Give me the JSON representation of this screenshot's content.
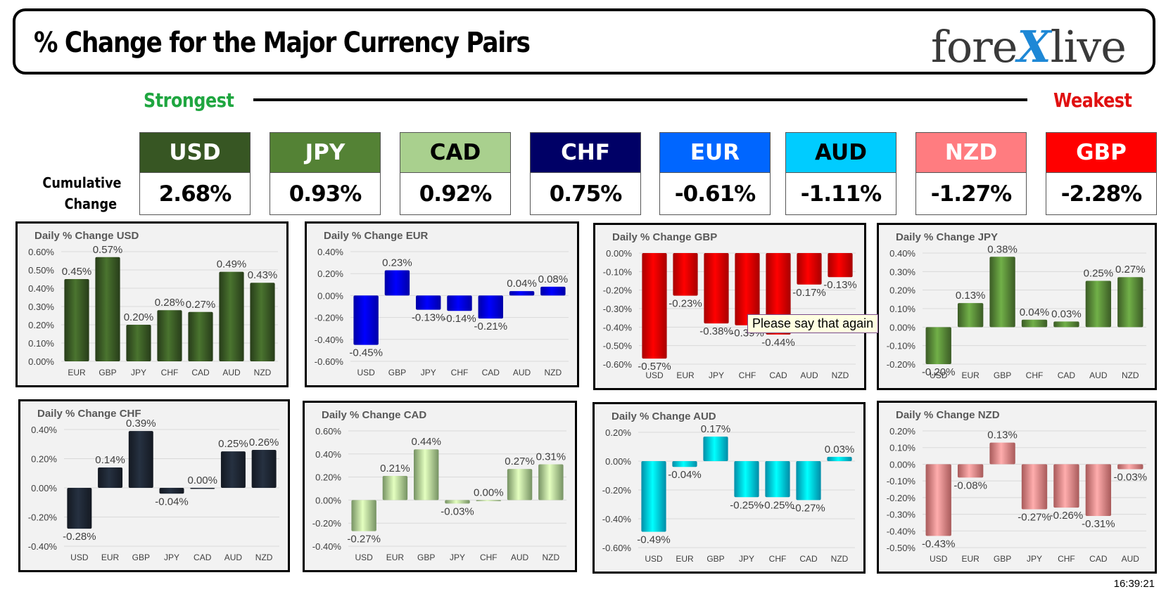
{
  "header": {
    "title": "% Change for the Major Currency Pairs",
    "logo_left": "fore",
    "logo_x": "X",
    "logo_right": "live"
  },
  "strength": {
    "strongest": "Strongest",
    "weakest": "Weakest"
  },
  "cumulative_label": [
    "Cumulative",
    "Change"
  ],
  "currencies": [
    {
      "code": "USD",
      "value": "2.68%",
      "bg": "#375623",
      "fg": "#ffffff"
    },
    {
      "code": "JPY",
      "value": "0.93%",
      "bg": "#548235",
      "fg": "#ffffff"
    },
    {
      "code": "CAD",
      "value": "0.92%",
      "bg": "#a9d08e",
      "fg": "#000000"
    },
    {
      "code": "CHF",
      "value": "0.75%",
      "bg": "#000066",
      "fg": "#ffffff"
    },
    {
      "code": "EUR",
      "value": "-0.61%",
      "bg": "#0066ff",
      "fg": "#ffffff"
    },
    {
      "code": "AUD",
      "value": "-1.11%",
      "bg": "#00ccff",
      "fg": "#000000"
    },
    {
      "code": "NZD",
      "value": "-1.27%",
      "bg": "#ff7c80",
      "fg": "#ffffff"
    },
    {
      "code": "GBP",
      "value": "-2.28%",
      "bg": "#ff0000",
      "fg": "#ffffff"
    }
  ],
  "chart_data": [
    {
      "type": "bar",
      "title": "Daily % Change USD",
      "categories": [
        "EUR",
        "GBP",
        "JPY",
        "CHF",
        "CAD",
        "AUD",
        "NZD"
      ],
      "values": [
        0.45,
        0.57,
        0.2,
        0.28,
        0.27,
        0.49,
        0.43
      ],
      "labels": [
        "0.45%",
        "0.57%",
        "0.20%",
        "0.28%",
        "0.27%",
        "0.49%",
        "0.43%"
      ],
      "yticks": [
        "0.00%",
        "0.10%",
        "0.20%",
        "0.30%",
        "0.40%",
        "0.50%",
        "0.60%"
      ],
      "ylim": [
        0,
        0.6
      ],
      "color": "#375623"
    },
    {
      "type": "bar",
      "title": "Daily % Change EUR",
      "categories": [
        "USD",
        "GBP",
        "JPY",
        "CHF",
        "CAD",
        "AUD",
        "NZD"
      ],
      "values": [
        -0.45,
        0.23,
        -0.13,
        -0.14,
        -0.21,
        0.04,
        0.08
      ],
      "labels": [
        "-0.45%",
        "0.23%",
        "-0.13%",
        "-0.14%",
        "-0.21%",
        "0.04%",
        "0.08%"
      ],
      "yticks": [
        "-0.60%",
        "-0.40%",
        "-0.20%",
        "0.00%",
        "0.20%",
        "0.40%"
      ],
      "ylim": [
        -0.6,
        0.4
      ],
      "color": "#0000ee"
    },
    {
      "type": "bar",
      "title": "Daily % Change GBP",
      "categories": [
        "USD",
        "EUR",
        "JPY",
        "CHF",
        "CAD",
        "AUD",
        "NZD"
      ],
      "values": [
        -0.57,
        -0.23,
        -0.38,
        -0.39,
        -0.44,
        -0.17,
        -0.13
      ],
      "labels": [
        "-0.57%",
        "-0.23%",
        "-0.38%",
        "-0.39%",
        "-0.44%",
        "-0.17%",
        "-0.13%"
      ],
      "yticks": [
        "-0.60%",
        "-0.50%",
        "-0.40%",
        "-0.30%",
        "-0.20%",
        "-0.10%",
        "0.00%"
      ],
      "ylim": [
        -0.6,
        0
      ],
      "color": "#ee0000"
    },
    {
      "type": "bar",
      "title": "Daily % Change JPY",
      "categories": [
        "USD",
        "EUR",
        "GBP",
        "CHF",
        "CAD",
        "AUD",
        "NZD"
      ],
      "values": [
        -0.2,
        0.13,
        0.38,
        0.04,
        0.03,
        0.25,
        0.27
      ],
      "labels": [
        "-0.20%",
        "0.13%",
        "0.38%",
        "0.04%",
        "0.03%",
        "0.25%",
        "0.27%"
      ],
      "yticks": [
        "-0.20%",
        "-0.10%",
        "0.00%",
        "0.10%",
        "0.20%",
        "0.30%",
        "0.40%"
      ],
      "ylim": [
        -0.2,
        0.4
      ],
      "color": "#548235"
    },
    {
      "type": "bar",
      "title": "Daily % Change CHF",
      "categories": [
        "USD",
        "EUR",
        "GBP",
        "JPY",
        "CAD",
        "AUD",
        "NZD"
      ],
      "values": [
        -0.28,
        0.14,
        0.39,
        -0.04,
        0.0,
        0.25,
        0.26
      ],
      "labels": [
        "-0.28%",
        "0.14%",
        "0.39%",
        "-0.04%",
        "0.00%",
        "0.25%",
        "0.26%"
      ],
      "yticks": [
        "-0.40%",
        "-0.20%",
        "0.00%",
        "0.20%",
        "0.40%"
      ],
      "ylim": [
        -0.4,
        0.4
      ],
      "color": "#1c2430"
    },
    {
      "type": "bar",
      "title": "Daily % Change CAD",
      "categories": [
        "USD",
        "EUR",
        "GBP",
        "JPY",
        "CHF",
        "AUD",
        "NZD"
      ],
      "values": [
        -0.27,
        0.21,
        0.44,
        -0.03,
        0.0,
        0.27,
        0.31
      ],
      "labels": [
        "-0.27%",
        "0.21%",
        "0.44%",
        "-0.03%",
        "0.00%",
        "0.27%",
        "0.31%"
      ],
      "yticks": [
        "-0.40%",
        "-0.20%",
        "0.00%",
        "0.20%",
        "0.40%",
        "0.60%"
      ],
      "ylim": [
        -0.4,
        0.6
      ],
      "color": "#a9d08e"
    },
    {
      "type": "bar",
      "title": "Daily % Change AUD",
      "categories": [
        "USD",
        "EUR",
        "GBP",
        "JPY",
        "CHF",
        "CAD",
        "NZD"
      ],
      "values": [
        -0.49,
        -0.04,
        0.17,
        -0.25,
        -0.25,
        -0.27,
        0.03
      ],
      "labels": [
        "-0.49%",
        "-0.04%",
        "0.17%",
        "-0.25%",
        "-0.25%",
        "-0.27%",
        "0.03%"
      ],
      "yticks": [
        "-0.60%",
        "-0.40%",
        "-0.20%",
        "0.00%",
        "0.20%"
      ],
      "ylim": [
        -0.6,
        0.2
      ],
      "color": "#00c8ee"
    },
    {
      "type": "bar",
      "title": "Daily % Change NZD",
      "categories": [
        "USD",
        "EUR",
        "GBP",
        "JPY",
        "CHF",
        "CAD",
        "AUD"
      ],
      "values": [
        -0.43,
        -0.08,
        0.13,
        -0.27,
        -0.26,
        -0.31,
        -0.03
      ],
      "labels": [
        "-0.43%",
        "-0.08%",
        "0.13%",
        "-0.27%",
        "-0.26%",
        "-0.31%",
        "-0.03%"
      ],
      "yticks": [
        "-0.50%",
        "-0.40%",
        "-0.30%",
        "-0.20%",
        "-0.10%",
        "0.00%",
        "0.10%",
        "0.20%"
      ],
      "ylim": [
        -0.5,
        0.2
      ],
      "color": "#f08080"
    }
  ],
  "tooltip": "Please say that again",
  "timestamp": "16:39:21"
}
